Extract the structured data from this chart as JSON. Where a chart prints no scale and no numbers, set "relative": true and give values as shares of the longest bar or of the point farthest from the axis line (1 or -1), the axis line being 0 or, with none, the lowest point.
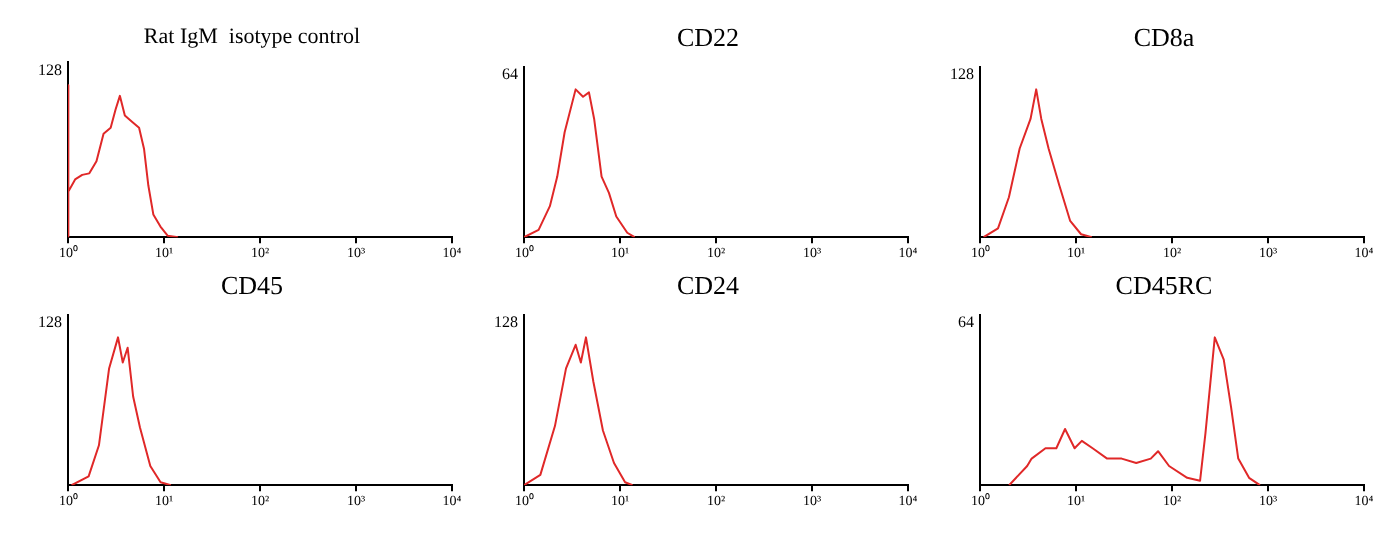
{
  "chart_data": [
    {
      "type": "line",
      "title": "Rat IgM  isotype control",
      "relative": true,
      "annotations": [
        "128"
      ],
      "x": [
        1,
        1,
        1.017,
        1.186,
        1.406,
        1.668,
        1.979,
        2.346,
        2.783,
        3.13,
        3.47,
        3.91,
        4.64,
        5.5,
        6.2,
        6.87,
        7.74,
        9.18,
        10.9,
        14
      ],
      "values": [
        0,
        1,
        0.3,
        0.38,
        0.41,
        0.42,
        0.5,
        0.68,
        0.72,
        0.84,
        0.93,
        0.8,
        0.76,
        0.72,
        0.58,
        0.34,
        0.15,
        0.07,
        0.01,
        0
      ],
      "color": "#e02828",
      "xlim": [
        1,
        10000
      ],
      "xticks": [
        {
          "value": 1,
          "label": "10⁰"
        },
        {
          "value": 10,
          "label": "10¹"
        },
        {
          "value": 100,
          "label": "10²"
        },
        {
          "value": 1000,
          "label": "10³"
        },
        {
          "value": 10000,
          "label": "10⁴"
        }
      ],
      "log": "x",
      "marker": "none"
    },
    {
      "type": "line",
      "title": "CD22",
      "relative": true,
      "annotations": [
        "64"
      ],
      "x": [
        1,
        1.42,
        1.86,
        2.22,
        2.65,
        3.45,
        4.12,
        4.75,
        5.38,
        6.43,
        7.67,
        9.15,
        11.9,
        14.2
      ],
      "values": [
        0,
        0.05,
        0.21,
        0.41,
        0.71,
        1,
        0.95,
        0.98,
        0.8,
        0.41,
        0.3,
        0.14,
        0.03,
        0
      ],
      "color": "#e02828",
      "xlim": [
        1,
        10000
      ],
      "xticks": [
        {
          "value": 1,
          "label": "10⁰"
        },
        {
          "value": 10,
          "label": "10¹"
        },
        {
          "value": 100,
          "label": "10²"
        },
        {
          "value": 1000,
          "label": "10³"
        },
        {
          "value": 10000,
          "label": "10⁴"
        }
      ],
      "log": "x",
      "marker": "none"
    },
    {
      "type": "line",
      "title": "CD8a",
      "relative": true,
      "annotations": [
        "128"
      ],
      "x": [
        1.09,
        1.54,
        2.0,
        2.59,
        3.36,
        3.85,
        4.35,
        5.18,
        6.71,
        8.7,
        11.3,
        14.6
      ],
      "values": [
        0,
        0.06,
        0.27,
        0.6,
        0.8,
        1,
        0.8,
        0.6,
        0.35,
        0.11,
        0.02,
        0
      ],
      "color": "#e02828",
      "xlim": [
        1,
        10000
      ],
      "xticks": [
        {
          "value": 1,
          "label": "10⁰"
        },
        {
          "value": 10,
          "label": "10¹"
        },
        {
          "value": 100,
          "label": "10²"
        },
        {
          "value": 1000,
          "label": "10³"
        },
        {
          "value": 10000,
          "label": "10⁴"
        }
      ],
      "log": "x",
      "marker": "none"
    },
    {
      "type": "line",
      "title": "CD45",
      "relative": true,
      "annotations": [
        "128"
      ],
      "x": [
        1.09,
        1.64,
        2.1,
        2.68,
        3.32,
        3.72,
        4.18,
        4.77,
        5.62,
        7.2,
        9.21,
        11.8
      ],
      "values": [
        0,
        0.06,
        0.27,
        0.79,
        1,
        0.83,
        0.93,
        0.6,
        0.39,
        0.13,
        0.02,
        0
      ],
      "color": "#e02828",
      "xlim": [
        1,
        10000
      ],
      "xticks": [
        {
          "value": 1,
          "label": "10⁰"
        },
        {
          "value": 10,
          "label": "10¹"
        },
        {
          "value": 100,
          "label": "10²"
        },
        {
          "value": 1000,
          "label": "10³"
        },
        {
          "value": 10000,
          "label": "10⁴"
        }
      ],
      "log": "x",
      "marker": "none"
    },
    {
      "type": "line",
      "title": "CD24",
      "relative": true,
      "annotations": [
        "128"
      ],
      "x": [
        1,
        1.48,
        2.1,
        2.74,
        3.45,
        3.91,
        4.42,
        5.28,
        6.64,
        8.66,
        11.3,
        13.5
      ],
      "values": [
        0,
        0.07,
        0.4,
        0.79,
        0.95,
        0.83,
        1,
        0.7,
        0.37,
        0.15,
        0.02,
        0
      ],
      "color": "#e02828",
      "xlim": [
        1,
        10000
      ],
      "xticks": [
        {
          "value": 1,
          "label": "10⁰"
        },
        {
          "value": 10,
          "label": "10¹"
        },
        {
          "value": 100,
          "label": "10²"
        },
        {
          "value": 1000,
          "label": "10³"
        },
        {
          "value": 10000,
          "label": "10⁴"
        }
      ],
      "log": "x",
      "marker": "none"
    },
    {
      "type": "line",
      "title": "CD45RC",
      "relative": true,
      "annotations": [
        "64"
      ],
      "x": [
        2.01,
        3.1,
        3.45,
        4.81,
        6.24,
        7.69,
        9.67,
        11.5,
        14.9,
        21.1,
        29.9,
        42.4,
        60.1,
        71.6,
        93.2,
        144,
        196,
        223,
        279,
        346,
        412,
        490,
        635,
        824
      ],
      "values": [
        0,
        0.13,
        0.18,
        0.25,
        0.25,
        0.38,
        0.25,
        0.3,
        0.25,
        0.18,
        0.18,
        0.15,
        0.18,
        0.23,
        0.13,
        0.05,
        0.03,
        0.35,
        1,
        0.85,
        0.53,
        0.18,
        0.05,
        0
      ],
      "color": "#e02828",
      "xlim": [
        1,
        10000
      ],
      "xticks": [
        {
          "value": 1,
          "label": "10⁰"
        },
        {
          "value": 10,
          "label": "10¹"
        },
        {
          "value": 100,
          "label": "10²"
        },
        {
          "value": 1000,
          "label": "10³"
        },
        {
          "value": 10000,
          "label": "10⁴"
        }
      ],
      "log": "x",
      "marker": "none"
    }
  ]
}
